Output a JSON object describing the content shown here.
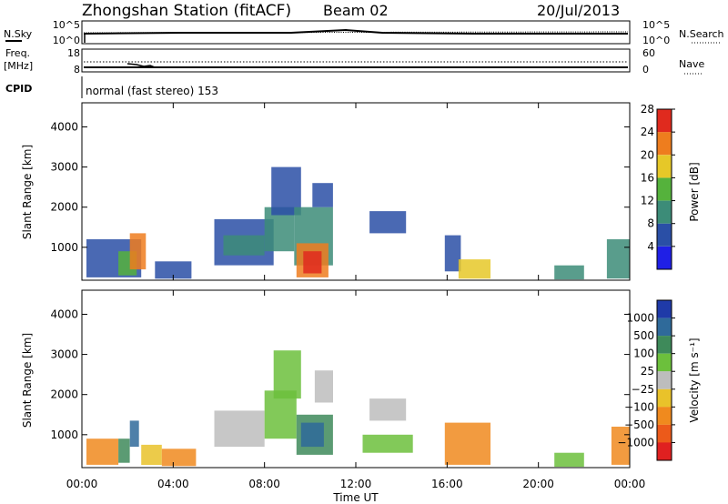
{
  "header": {
    "station": "Zhongshan Station (fitACF)",
    "beam": "Beam 02",
    "date": "20/Jul/2013"
  },
  "top_panels": {
    "noise": {
      "left_label": "N.Sky",
      "left_ticks": [
        "10^5",
        "10^0"
      ],
      "right_ticks": [
        "10^5",
        "10^0"
      ],
      "right_label": "N.Search"
    },
    "freq": {
      "left_label_1": "Freq.",
      "left_label_2": "[MHz]",
      "left_ticks": [
        "18",
        "8"
      ],
      "right_ticks": [
        "60",
        "0"
      ],
      "right_label": "Nave"
    },
    "cpid": {
      "label": "CPID",
      "text": "normal (fast stereo) 153"
    }
  },
  "colorbars": {
    "power": {
      "label": "Power [dB]",
      "ticks": [
        "4",
        "8",
        "12",
        "16",
        "20",
        "24",
        "28"
      ],
      "colors": [
        "#1f1fe6",
        "#2a4fa6",
        "#3c8c78",
        "#55b23c",
        "#e6c828",
        "#ee7d1e",
        "#e02a1e"
      ]
    },
    "velocity": {
      "label": "Velocity [m s⁻¹]",
      "ticks": [
        "1000",
        "500",
        "100",
        "25",
        "−25",
        "−100",
        "−500",
        "−1000"
      ],
      "colors": [
        "#1f3aa8",
        "#2f6a9a",
        "#3e8a5a",
        "#6cc03c",
        "#bdbdbd",
        "#e9c22a",
        "#f08a1e",
        "#ec5a1a",
        "#e02020"
      ]
    }
  },
  "chart_data": [
    {
      "type": "heatmap",
      "title": "",
      "ylabel": "Slant Range [km]",
      "xlabel": "",
      "x_range_hours": [
        0,
        24
      ],
      "ylim": [
        180,
        4600
      ],
      "yticks": [
        "1000",
        "2000",
        "3000",
        "4000"
      ],
      "quantity": "Power [dB]",
      "cells": [
        {
          "t0": 0.2,
          "t1": 2.6,
          "r0": 250,
          "r1": 1200,
          "v": 6
        },
        {
          "t0": 1.6,
          "t1": 2.4,
          "r0": 300,
          "r1": 900,
          "v": 14
        },
        {
          "t0": 2.1,
          "t1": 2.8,
          "r0": 450,
          "r1": 1350,
          "v": 22
        },
        {
          "t0": 3.2,
          "t1": 4.8,
          "r0": 220,
          "r1": 650,
          "v": 7
        },
        {
          "t0": 5.8,
          "t1": 8.4,
          "r0": 550,
          "r1": 1700,
          "v": 6
        },
        {
          "t0": 6.2,
          "t1": 8.0,
          "r0": 800,
          "r1": 1300,
          "v": 11
        },
        {
          "t0": 8.0,
          "t1": 9.3,
          "r0": 900,
          "r1": 2000,
          "v": 9
        },
        {
          "t0": 8.3,
          "t1": 9.6,
          "r0": 1800,
          "r1": 3000,
          "v": 5
        },
        {
          "t0": 9.3,
          "t1": 11.0,
          "r0": 550,
          "r1": 2000,
          "v": 8
        },
        {
          "t0": 9.4,
          "t1": 10.8,
          "r0": 250,
          "r1": 1100,
          "v": 20
        },
        {
          "t0": 9.7,
          "t1": 10.5,
          "r0": 350,
          "r1": 900,
          "v": 27
        },
        {
          "t0": 10.1,
          "t1": 11.0,
          "r0": 2000,
          "r1": 2600,
          "v": 5
        },
        {
          "t0": 12.6,
          "t1": 14.2,
          "r0": 1350,
          "r1": 1900,
          "v": 6
        },
        {
          "t0": 15.9,
          "t1": 16.6,
          "r0": 400,
          "r1": 1300,
          "v": 7
        },
        {
          "t0": 16.5,
          "t1": 17.9,
          "r0": 220,
          "r1": 700,
          "v": 18
        },
        {
          "t0": 20.7,
          "t1": 22.0,
          "r0": 200,
          "r1": 550,
          "v": 8
        },
        {
          "t0": 23.0,
          "t1": 24.0,
          "r0": 220,
          "r1": 1200,
          "v": 9
        }
      ]
    },
    {
      "type": "heatmap",
      "title": "",
      "ylabel": "Slant Range [km]",
      "xlabel": "Time UT",
      "x_range_hours": [
        0,
        24
      ],
      "xticks": [
        "00:00",
        "04:00",
        "08:00",
        "12:00",
        "16:00",
        "20:00",
        "00:00"
      ],
      "ylim": [
        180,
        4600
      ],
      "yticks": [
        "1000",
        "2000",
        "3000",
        "4000"
      ],
      "quantity": "Velocity [m s⁻¹]",
      "cells": [
        {
          "t0": 0.2,
          "t1": 1.6,
          "r0": 250,
          "r1": 900,
          "v": -200
        },
        {
          "t0": 1.6,
          "t1": 2.1,
          "r0": 300,
          "r1": 900,
          "v": 150
        },
        {
          "t0": 2.1,
          "t1": 2.5,
          "r0": 700,
          "r1": 1350,
          "v": 900
        },
        {
          "t0": 2.6,
          "t1": 3.5,
          "r0": 250,
          "r1": 750,
          "v": -80
        },
        {
          "t0": 3.5,
          "t1": 5.0,
          "r0": 220,
          "r1": 650,
          "v": -300
        },
        {
          "t0": 5.8,
          "t1": 8.0,
          "r0": 700,
          "r1": 1600,
          "v": 10
        },
        {
          "t0": 8.0,
          "t1": 9.4,
          "r0": 900,
          "r1": 2100,
          "v": 30
        },
        {
          "t0": 8.4,
          "t1": 9.6,
          "r0": 1900,
          "r1": 3100,
          "v": 60
        },
        {
          "t0": 9.4,
          "t1": 11.0,
          "r0": 500,
          "r1": 1500,
          "v": 400
        },
        {
          "t0": 9.6,
          "t1": 10.6,
          "r0": 700,
          "r1": 1300,
          "v": 700
        },
        {
          "t0": 10.2,
          "t1": 11.0,
          "r0": 1800,
          "r1": 2600,
          "v": 15
        },
        {
          "t0": 12.6,
          "t1": 14.2,
          "r0": 1350,
          "r1": 1900,
          "v": 5
        },
        {
          "t0": 12.3,
          "t1": 14.5,
          "r0": 550,
          "r1": 1000,
          "v": 80
        },
        {
          "t0": 15.9,
          "t1": 17.9,
          "r0": 250,
          "r1": 1300,
          "v": -350
        },
        {
          "t0": 20.7,
          "t1": 22.0,
          "r0": 200,
          "r1": 550,
          "v": 60
        },
        {
          "t0": 23.2,
          "t1": 24.0,
          "r0": 250,
          "r1": 1200,
          "v": -300
        }
      ]
    }
  ]
}
